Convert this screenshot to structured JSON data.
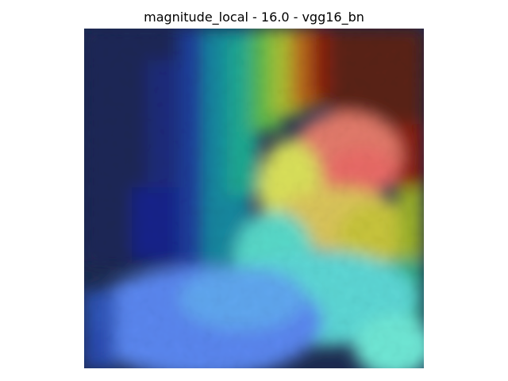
{
  "figure": {
    "title": "magnitude_local - 16.0 - vgg16_bn"
  },
  "image": {
    "description_colors": {
      "navy": "#1c2a52",
      "deep_blue": "#1f2d8a",
      "teal": "#1aa59c",
      "cyan": "#5fe0d8",
      "sky": "#5b8cf0",
      "yellow": "#dcdf55",
      "salmon": "#e8786a",
      "dark_red": "#7a1a10",
      "brown": "#5a2410"
    }
  }
}
